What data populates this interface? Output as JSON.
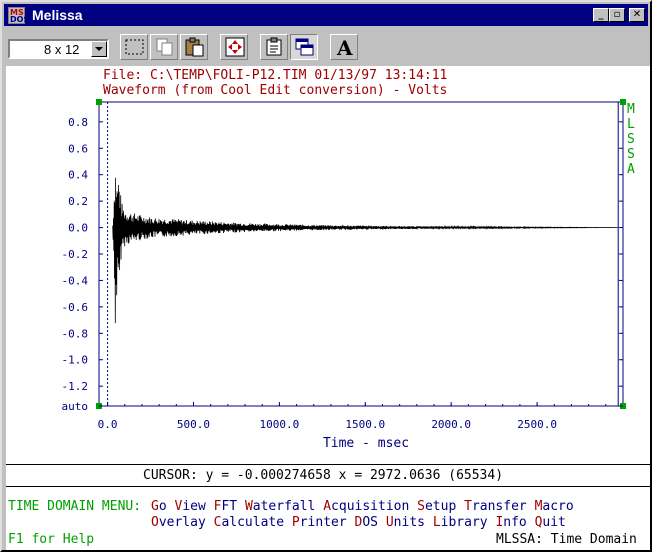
{
  "window": {
    "title": "Melissa"
  },
  "toolbar": {
    "font_size": "8 x 12"
  },
  "header": {
    "file_line": "File: C:\\TEMP\\FOLI-P12.TIM 01/13/97 13:14:11",
    "waveform_line": "Waveform (from Cool Edit conversion) - Volts"
  },
  "sidebar_letters": [
    "M",
    "L",
    "S",
    "S",
    "A"
  ],
  "chart_data": {
    "type": "line",
    "title": "Waveform (from Cool Edit conversion) - Volts",
    "xlabel": "Time - msec",
    "ylabel": "",
    "x_ticks": [
      "0.0",
      "500.0",
      "1000.0",
      "1500.0",
      "2000.0",
      "2500.0"
    ],
    "y_ticks": [
      "0.8",
      "0.6",
      "0.4",
      "0.2",
      "0.0",
      "-0.2",
      "-0.4",
      "-0.6",
      "-0.8",
      "-1.0",
      "-1.2",
      "auto"
    ],
    "xlim": [
      -50,
      3000
    ],
    "ylim": [
      -1.35,
      0.95
    ],
    "cursor_x": 2972.0636,
    "series": [
      {
        "x": [
          30,
          45,
          55,
          65,
          80,
          100,
          130,
          180,
          250,
          350,
          500,
          700,
          900,
          1200,
          1500,
          1800,
          2100,
          2400,
          2700,
          2972
        ],
        "y_max": [
          0.02,
          0.55,
          0.35,
          0.42,
          0.2,
          0.14,
          0.12,
          0.1,
          0.08,
          0.07,
          0.055,
          0.04,
          0.03,
          0.02,
          0.015,
          0.01,
          0.006,
          0.004,
          0.002,
          0.0
        ],
        "y_min": [
          -0.02,
          -0.8,
          -0.55,
          -0.62,
          -0.2,
          -0.14,
          -0.12,
          -0.1,
          -0.08,
          -0.07,
          -0.055,
          -0.04,
          -0.03,
          -0.02,
          -0.015,
          -0.01,
          -0.006,
          -0.004,
          -0.002,
          0.0
        ]
      }
    ]
  },
  "cursor": {
    "text": "CURSOR: y = -0.000274658 x = 2972.0636 (65534)"
  },
  "menu": {
    "label": "TIME DOMAIN MENU:",
    "row1": [
      {
        "hot": "G",
        "rest": "o"
      },
      {
        "hot": "V",
        "rest": "iew"
      },
      {
        "hot": "F",
        "rest": "FT"
      },
      {
        "hot": "W",
        "rest": "aterfall"
      },
      {
        "hot": "A",
        "rest": "cquisition"
      },
      {
        "hot": "S",
        "rest": "etup"
      },
      {
        "hot": "T",
        "rest": "ransfer"
      },
      {
        "hot": "M",
        "rest": "acro"
      }
    ],
    "row2": [
      {
        "hot": "O",
        "rest": "verlay"
      },
      {
        "hot": "C",
        "rest": "alculate"
      },
      {
        "hot": "P",
        "rest": "rinter"
      },
      {
        "hot": "D",
        "rest": "OS"
      },
      {
        "hot": "U",
        "rest": "nits"
      },
      {
        "hot": "L",
        "rest": "ibrary"
      },
      {
        "hot": "I",
        "rest": "nfo"
      },
      {
        "hot": "Q",
        "rest": "uit"
      }
    ]
  },
  "status": {
    "help": "F1 for Help",
    "mode": "MLSSA: Time Domain"
  }
}
